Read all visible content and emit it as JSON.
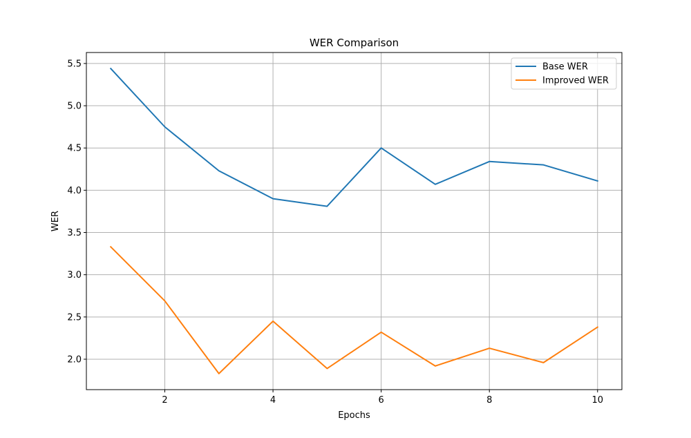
{
  "chart_data": {
    "type": "line",
    "title": "WER Comparison",
    "xlabel": "Epochs",
    "ylabel": "WER",
    "xlim": [
      0.55,
      10.45
    ],
    "ylim": [
      1.64,
      5.63
    ],
    "xticks": [
      2,
      4,
      6,
      8,
      10
    ],
    "yticks": [
      2.0,
      2.5,
      3.0,
      3.5,
      4.0,
      4.5,
      5.0,
      5.5
    ],
    "grid": true,
    "legend_position": "top-right",
    "x": [
      1,
      2,
      3,
      4,
      5,
      6,
      7,
      8,
      9,
      10
    ],
    "series": [
      {
        "name": "Base WER",
        "color": "#1f77b4",
        "values": [
          5.44,
          4.75,
          4.23,
          3.9,
          3.81,
          4.5,
          4.07,
          4.34,
          4.3,
          4.11
        ]
      },
      {
        "name": "Improved WER",
        "color": "#ff7f0e",
        "values": [
          3.33,
          2.69,
          1.83,
          2.45,
          1.89,
          2.32,
          1.92,
          2.13,
          1.96,
          2.38
        ]
      }
    ]
  }
}
